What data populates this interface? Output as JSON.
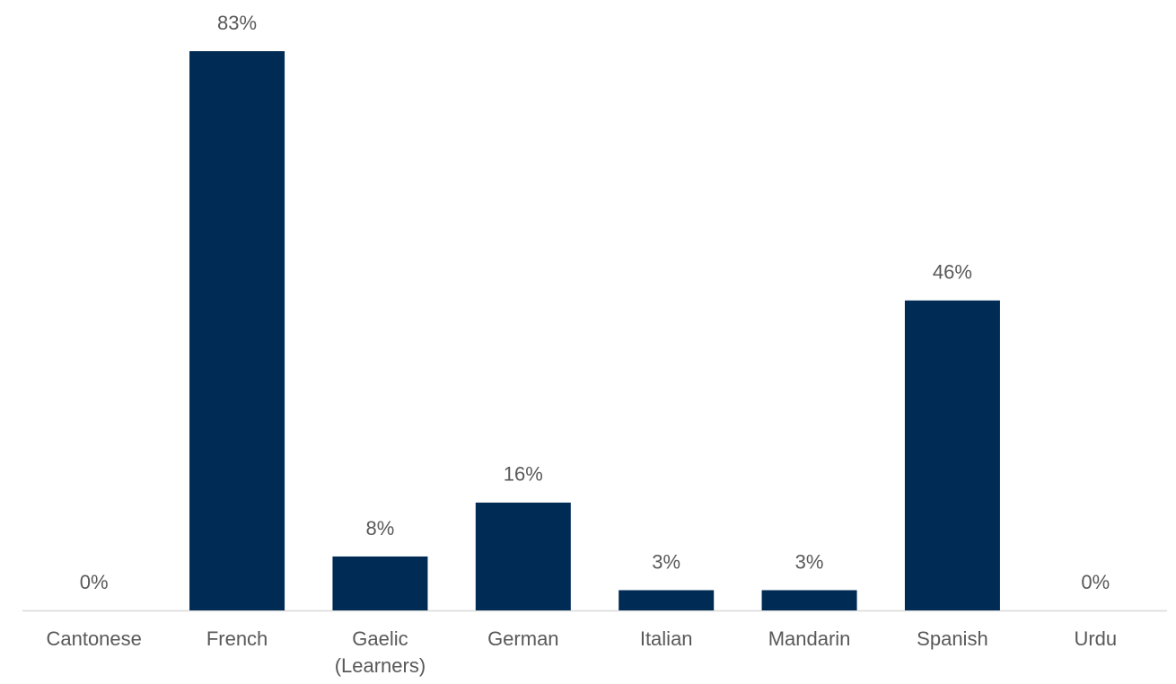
{
  "chart_data": {
    "type": "bar",
    "categories": [
      "Cantonese",
      "French",
      "Gaelic (Learners)",
      "German",
      "Italian",
      "Mandarin",
      "Spanish",
      "Urdu"
    ],
    "values": [
      0,
      83,
      8,
      16,
      3,
      3,
      46,
      0
    ],
    "value_labels": [
      "0%",
      "83%",
      "8%",
      "16%",
      "3%",
      "3%",
      "46%",
      "0%"
    ],
    "color": "#002b54"
  }
}
